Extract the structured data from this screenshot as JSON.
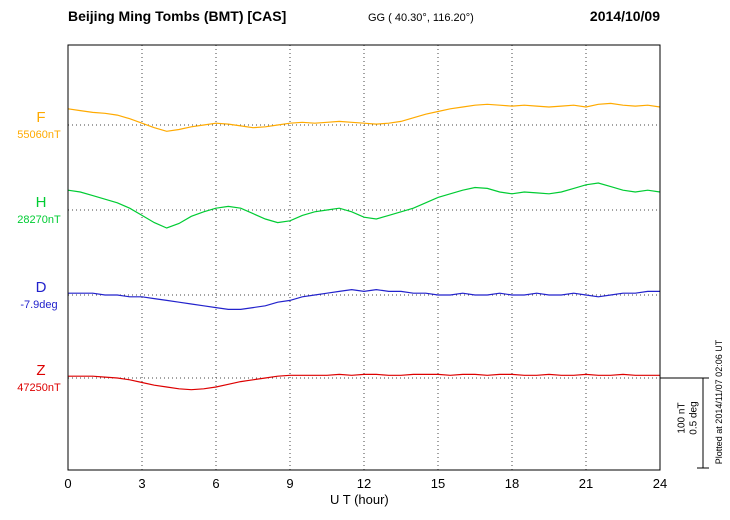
{
  "header": {
    "station": "Beijing Ming Tombs (BMT)  [CAS]",
    "coords": "GG ( 40.30°, 116.20°)",
    "date": "2014/10/09"
  },
  "axis": {
    "x_label": "U T (hour)",
    "x_min": 0,
    "x_max": 24,
    "x_ticks": [
      "0",
      "3",
      "6",
      "9",
      "12",
      "15",
      "18",
      "21",
      "24"
    ],
    "gridline_interval_hours": 3
  },
  "scale_bar": {
    "nt_label": "100 nT",
    "deg_label": "0.5 deg",
    "nT": 100,
    "deg": 0.5
  },
  "plotted_at": "Plotted at 2014/11/07 02:06 UT",
  "chart_data": {
    "type": "line",
    "title": "Beijing Ming Tombs (BMT) [CAS] magnetogram 2014/10/09",
    "xlabel": "U T (hour)",
    "x_range": [
      0,
      24
    ],
    "x_start": 0,
    "x_step_hours": 0.5,
    "grid": "dotted vertical every 3 h, dotted horizontal baseline per component",
    "legend_position": "left margin component labels",
    "series": [
      {
        "name": "F",
        "baseline_label": "55060nT",
        "baseline_value": 55060,
        "unit": "nT",
        "color": "#FFAA00",
        "offsets": [
          18,
          16,
          14,
          13,
          11,
          7,
          2,
          -3,
          -7,
          -5,
          -2,
          0,
          2,
          1,
          -1,
          -3,
          -2,
          0,
          2,
          3,
          2,
          3,
          4,
          3,
          2,
          1,
          2,
          4,
          8,
          12,
          15,
          18,
          20,
          22,
          23,
          22,
          21,
          22,
          21,
          20,
          21,
          22,
          20,
          23,
          24,
          22,
          21,
          22,
          20
        ]
      },
      {
        "name": "H",
        "baseline_label": "28270nT",
        "baseline_value": 28270,
        "unit": "nT",
        "color": "#00CC33",
        "offsets": [
          22,
          20,
          16,
          12,
          8,
          2,
          -6,
          -14,
          -20,
          -15,
          -7,
          -2,
          2,
          4,
          2,
          -4,
          -10,
          -14,
          -12,
          -6,
          -2,
          0,
          2,
          -2,
          -8,
          -10,
          -6,
          -2,
          2,
          8,
          14,
          18,
          22,
          25,
          24,
          20,
          18,
          20,
          19,
          18,
          20,
          24,
          28,
          30,
          26,
          22,
          20,
          22,
          20
        ]
      },
      {
        "name": "D",
        "baseline_label": "-7.9deg",
        "baseline_value": -7.9,
        "unit": "deg",
        "color": "#2222CC",
        "offsets": [
          0.01,
          0.01,
          0.01,
          0,
          0,
          -0.01,
          -0.01,
          -0.02,
          -0.03,
          -0.04,
          -0.05,
          -0.06,
          -0.07,
          -0.08,
          -0.08,
          -0.07,
          -0.06,
          -0.04,
          -0.03,
          -0.01,
          0,
          0.01,
          0.02,
          0.03,
          0.02,
          0.03,
          0.02,
          0.02,
          0.01,
          0.01,
          0,
          0,
          0.01,
          0,
          0,
          0.01,
          0,
          0,
          0.01,
          0,
          0,
          0.01,
          0,
          -0.01,
          0,
          0.01,
          0.01,
          0.02,
          0.02
        ]
      },
      {
        "name": "Z",
        "baseline_label": "47250nT",
        "baseline_value": 47250,
        "unit": "nT",
        "color": "#DD0000",
        "offsets": [
          2,
          2,
          2,
          1,
          0,
          -2,
          -5,
          -8,
          -10,
          -12,
          -13,
          -12,
          -10,
          -7,
          -4,
          -2,
          0,
          2,
          3,
          3,
          3,
          3,
          4,
          3,
          4,
          4,
          3,
          3,
          4,
          4,
          4,
          3,
          4,
          4,
          3,
          4,
          4,
          3,
          3,
          4,
          3,
          3,
          4,
          3,
          3,
          4,
          3,
          3,
          3
        ]
      }
    ],
    "scale": {
      "nT_per_bar": 100,
      "deg_per_bar": 0.5
    }
  }
}
